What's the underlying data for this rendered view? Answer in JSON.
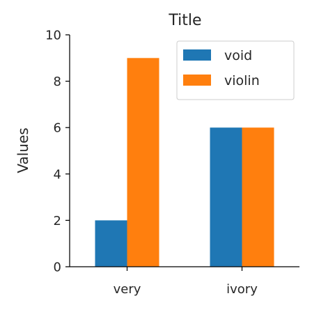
{
  "chart_data": {
    "type": "bar",
    "title": "Title",
    "xlabel": "",
    "ylabel": "Values",
    "categories": [
      "very",
      "ivory"
    ],
    "series": [
      {
        "name": "void",
        "values": [
          2,
          6
        ],
        "color": "#1f77b4"
      },
      {
        "name": "violin",
        "values": [
          9,
          6
        ],
        "color": "#ff7f0e"
      }
    ],
    "ylim": [
      0,
      10
    ],
    "yticks": [
      0,
      2,
      4,
      6,
      8,
      10
    ],
    "grid": false,
    "legend_position": "top-right"
  }
}
